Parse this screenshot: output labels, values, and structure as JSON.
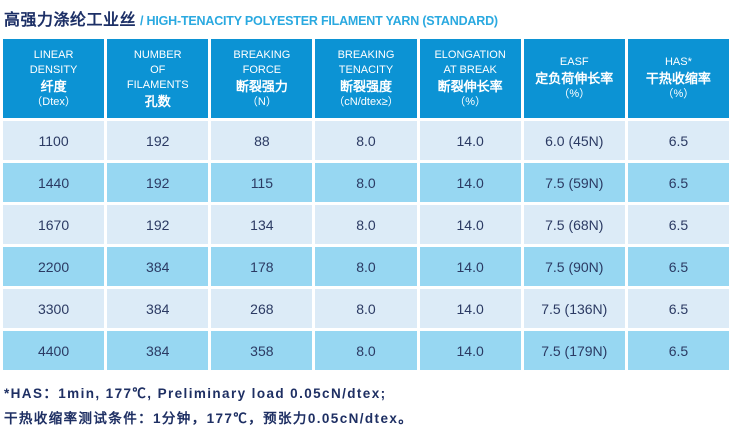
{
  "title": {
    "zh": "高强力涤纶工业丝",
    "en": "/ HIGH-TENACITY POLYESTER FILAMENT YARN (STANDARD)"
  },
  "table": {
    "columns": [
      {
        "lines": [
          "LINEAR",
          "DENSITY",
          "纤度",
          "（Dtex）"
        ]
      },
      {
        "lines": [
          "NUMBER",
          "OF",
          "FILAMENTS",
          "孔数"
        ]
      },
      {
        "lines": [
          "BREAKING",
          "FORCE",
          "断裂强力",
          "（N）"
        ]
      },
      {
        "lines": [
          "BREAKING",
          "TENACITY",
          "断裂强度",
          "（cN/dtex≥）"
        ]
      },
      {
        "lines": [
          "ELONGATION",
          "AT BREAK",
          "断裂伸长率",
          "（%）"
        ]
      },
      {
        "lines": [
          "EASF",
          "定负荷伸长率",
          "（%）"
        ]
      },
      {
        "lines": [
          "HAS*",
          "干热收缩率",
          "（%）"
        ]
      }
    ],
    "rows": [
      [
        "1100",
        "192",
        "88",
        "8.0",
        "14.0",
        "6.0 (45N)",
        "6.5"
      ],
      [
        "1440",
        "192",
        "115",
        "8.0",
        "14.0",
        "7.5 (59N)",
        "6.5"
      ],
      [
        "1670",
        "192",
        "134",
        "8.0",
        "14.0",
        "7.5 (68N)",
        "6.5"
      ],
      [
        "2200",
        "384",
        "178",
        "8.0",
        "14.0",
        "7.5 (90N)",
        "6.5"
      ],
      [
        "3300",
        "384",
        "268",
        "8.0",
        "14.0",
        "7.5 (136N)",
        "6.5"
      ],
      [
        "4400",
        "384",
        "358",
        "8.0",
        "14.0",
        "7.5 (179N)",
        "6.5"
      ]
    ]
  },
  "footnotes": [
    "*HAS：1min, 177℃, Preliminary load 0.05cN/dtex;",
    "干热收缩率测试条件：1分钟，177℃，预张力0.05cN/dtex。"
  ],
  "colors": {
    "header_bg": "#0c93d4",
    "row_odd_bg": "#dcebf7",
    "row_even_bg": "#97d7f2",
    "cell_text": "#2b3a63",
    "title_zh": "#1c2f66",
    "title_en": "#2aa9e0",
    "footnote_text": "#1e2f63"
  }
}
